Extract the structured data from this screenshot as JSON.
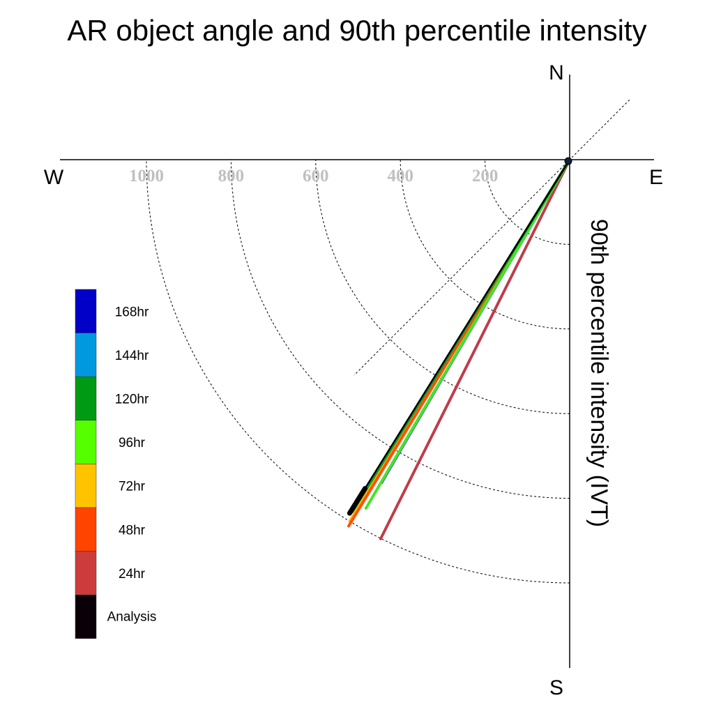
{
  "chart_data": {
    "type": "polar-vector",
    "title": "AR object angle and 90th percentile intensity",
    "ylabel": "90th percentile intensity (IVT)",
    "compass": {
      "north": "N",
      "south": "S",
      "east": "E",
      "west": "W"
    },
    "radial_ticks": [
      200,
      400,
      600,
      800,
      1000
    ],
    "radial_tick_labels": [
      "200",
      "400",
      "600",
      "800",
      "1000"
    ],
    "rlim": [
      0,
      1000
    ],
    "grid": true,
    "reference_line_angle_deg": 45,
    "legend_position": "left",
    "legend": [
      {
        "label": "168hr",
        "color": "#0000c8"
      },
      {
        "label": "144hr",
        "color": "#0099e0"
      },
      {
        "label": "120hr",
        "color": "#009a14"
      },
      {
        "label": "96hr",
        "color": "#55ff00"
      },
      {
        "label": "72hr",
        "color": "#ffc300"
      },
      {
        "label": "48hr",
        "color": "#ff4400"
      },
      {
        "label": "24hr",
        "color": "#cc3c3c"
      },
      {
        "label": "Analysis",
        "color": "#0a0008"
      }
    ],
    "series": [
      {
        "name": "168hr",
        "angle_deg": 210.2,
        "intensity": 883,
        "color": "#5050c8"
      },
      {
        "name": "144hr",
        "angle_deg": 211.5,
        "intensity": 852,
        "color": "#22a0d8"
      },
      {
        "name": "24hr",
        "angle_deg": 206.5,
        "intensity": 1001,
        "color": "#c03c48"
      },
      {
        "name": "72hr",
        "angle_deg": 211.3,
        "intensity": 1000,
        "color": "#ffb400"
      },
      {
        "name": "48hr",
        "angle_deg": 211.1,
        "intensity": 1011,
        "color": "#ff5000"
      },
      {
        "name": "96hr",
        "angle_deg": 210.3,
        "intensity": 954,
        "color": "#44e622"
      },
      {
        "name": "120hr",
        "angle_deg": 211.7,
        "intensity": 978,
        "color": "#109a28"
      },
      {
        "name": "Analysis",
        "angle_deg": 211.9,
        "intensity": 984,
        "color": "#000000"
      }
    ]
  }
}
